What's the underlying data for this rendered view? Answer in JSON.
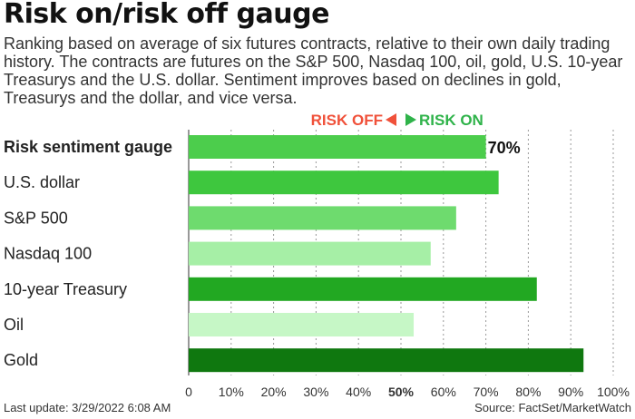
{
  "header": {
    "title": "Risk on/risk off gauge",
    "subtitle": "Ranking based on average of six futures contracts, relative to their own daily trading history. The contracts are futures on the S&P 500, Nasdaq 100, oil, gold, U.S. 10-year Treasurys and the U.S. dollar. Sentiment improves based on declines in gold, Treasurys and the dollar, and vice versa."
  },
  "chart_data": {
    "type": "bar",
    "orientation": "horizontal",
    "direction_labels": {
      "risk_off": "RISK OFF",
      "risk_on": "RISK ON"
    },
    "direction_colors": {
      "risk_off": "#f0513a",
      "risk_on": "#2fb34a"
    },
    "categories": [
      "Risk sentiment gauge",
      "U.S. dollar",
      "S&P 500",
      "Nasdaq 100",
      "10-year Treasury",
      "Oil",
      "Gold"
    ],
    "values": [
      70,
      73,
      63,
      57,
      82,
      53,
      93
    ],
    "bar_colors": [
      "#4ccd4c",
      "#3ec73e",
      "#6edb6e",
      "#a6efa6",
      "#22a822",
      "#c6f7c6",
      "#0f780f"
    ],
    "highlight_category": "Risk sentiment gauge",
    "data_labels": [
      {
        "category": "Risk sentiment gauge",
        "text": "70%"
      }
    ],
    "xlim": [
      0,
      100
    ],
    "xticks": [
      "0",
      "10%",
      "20%",
      "30%",
      "40%",
      "50%",
      "60%",
      "70%",
      "80%",
      "90%",
      "100%"
    ],
    "highlight_tick": "50%",
    "grid": "vertical dotted",
    "legend": "none"
  },
  "footer": {
    "last_update": "Last update: 3/29/2022 6:08 AM",
    "source": "Source: FactSet/MarketWatch"
  }
}
